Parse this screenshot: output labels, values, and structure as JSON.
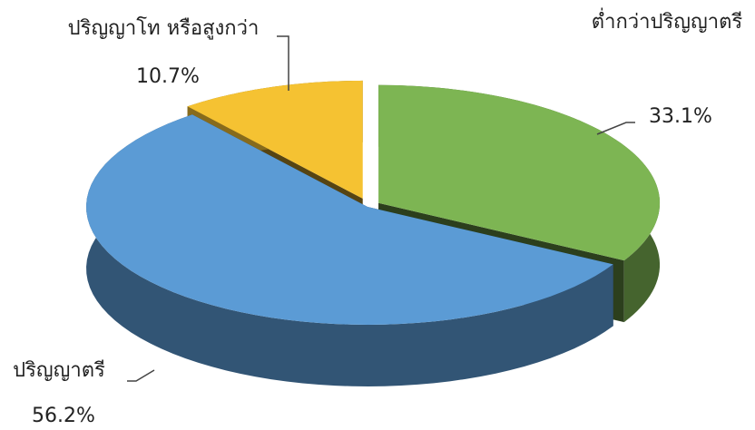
{
  "chart_data": {
    "type": "pie3d",
    "categories": [
      "ต่ำกว่าปริญญาตรี",
      "ปริญญาตรี",
      "ปริญญาโท หรือสูงกว่า"
    ],
    "values": [
      33.1,
      56.2,
      10.7
    ],
    "value_labels": [
      "33.1%",
      "56.2%",
      "10.7%"
    ],
    "colors": [
      "#7db553",
      "#5b9bd5",
      "#f5c232"
    ]
  }
}
